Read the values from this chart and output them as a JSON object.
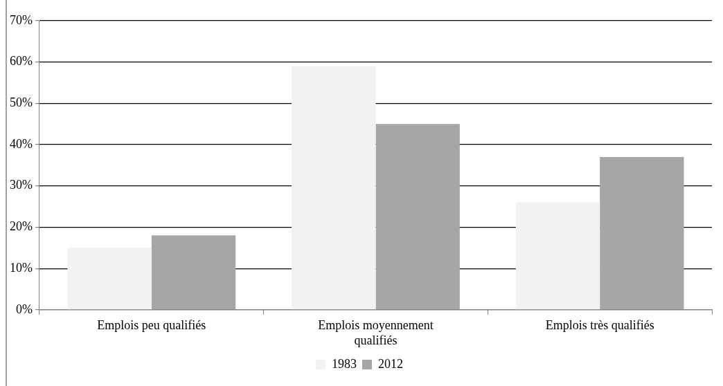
{
  "chart_data": {
    "type": "bar",
    "categories": [
      "Emplois peu qualifiés",
      "Emplois moyennement qualifiés",
      "Emplois très qualifiés"
    ],
    "series": [
      {
        "name": "1983",
        "color": "#f2f2f2",
        "values": [
          15,
          59,
          26
        ]
      },
      {
        "name": "2012",
        "color": "#a6a6a6",
        "values": [
          18,
          45,
          37
        ]
      }
    ],
    "ylim": [
      0,
      70
    ],
    "yticks": [
      {
        "value": 0,
        "label": "0%"
      },
      {
        "value": 10,
        "label": "10%"
      },
      {
        "value": 20,
        "label": "20%"
      },
      {
        "value": 30,
        "label": "30%"
      },
      {
        "value": 40,
        "label": "40%"
      },
      {
        "value": 50,
        "label": "50%"
      },
      {
        "value": 60,
        "label": "60%"
      },
      {
        "value": 70,
        "label": "70%"
      }
    ],
    "grid": "y",
    "legend": "bottom"
  }
}
